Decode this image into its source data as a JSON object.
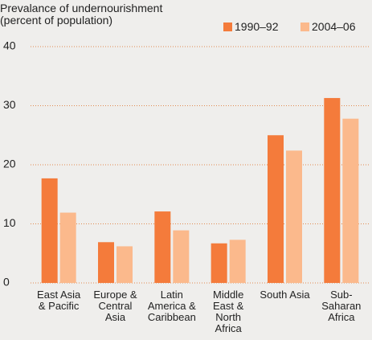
{
  "chart_data": {
    "type": "bar",
    "title": "Prevalance of undernourishment",
    "subtitle": "(percent of population)",
    "categories": [
      "East Asia & Pacific",
      "Europe & Central Asia",
      "Latin America & Caribbean",
      "Middle East & North Africa",
      "South Asia",
      "Sub-Saharan Africa"
    ],
    "series": [
      {
        "name": "1990–92",
        "color": "#f47b3b",
        "values": [
          17.7,
          6.9,
          12.1,
          6.7,
          25,
          31.3
        ]
      },
      {
        "name": "2004–06",
        "color": "#fbb98c",
        "values": [
          11.9,
          6.2,
          8.9,
          7.3,
          22.4,
          27.8
        ]
      }
    ],
    "ylim": [
      0,
      40
    ],
    "yticks": [
      0,
      10,
      20,
      30,
      40
    ],
    "grid": true
  }
}
